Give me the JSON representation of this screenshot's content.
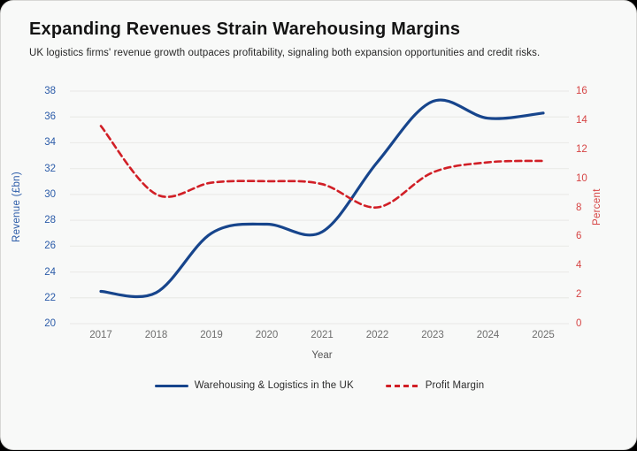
{
  "card": {
    "title": "Expanding Revenues Strain Warehousing Margins",
    "subtitle": "UK logistics firms' revenue growth outpaces profitability, signaling both expansion opportunities and credit risks."
  },
  "chart_data": {
    "type": "line",
    "x": [
      2017,
      2018,
      2019,
      2020,
      2021,
      2022,
      2023,
      2024,
      2025
    ],
    "xlabel": "Year",
    "grid": true,
    "legend_position": "bottom",
    "left_axis": {
      "label": "Revenue (£bn)",
      "min": 20,
      "max": 38,
      "step": 2,
      "tick_color": "#2b5ba8"
    },
    "right_axis": {
      "label": "Percent",
      "min": 0,
      "max": 16,
      "step": 2,
      "tick_color": "#d64444"
    },
    "series": [
      {
        "name": "Warehousing & Logistics in the UK",
        "axis": "left",
        "color": "#17458c",
        "line_style": "solid",
        "values": [
          22.5,
          22.4,
          27.0,
          27.7,
          27.1,
          32.5,
          37.2,
          35.9,
          36.3
        ]
      },
      {
        "name": "Profit Margin",
        "axis": "right",
        "color": "#d11f26",
        "line_style": "dashed",
        "values": [
          13.6,
          8.9,
          9.7,
          9.8,
          9.6,
          8.0,
          10.4,
          11.1,
          11.2
        ]
      }
    ],
    "style": {
      "background": "#f8f9f8",
      "gridline_color": "#ebebe9"
    }
  }
}
